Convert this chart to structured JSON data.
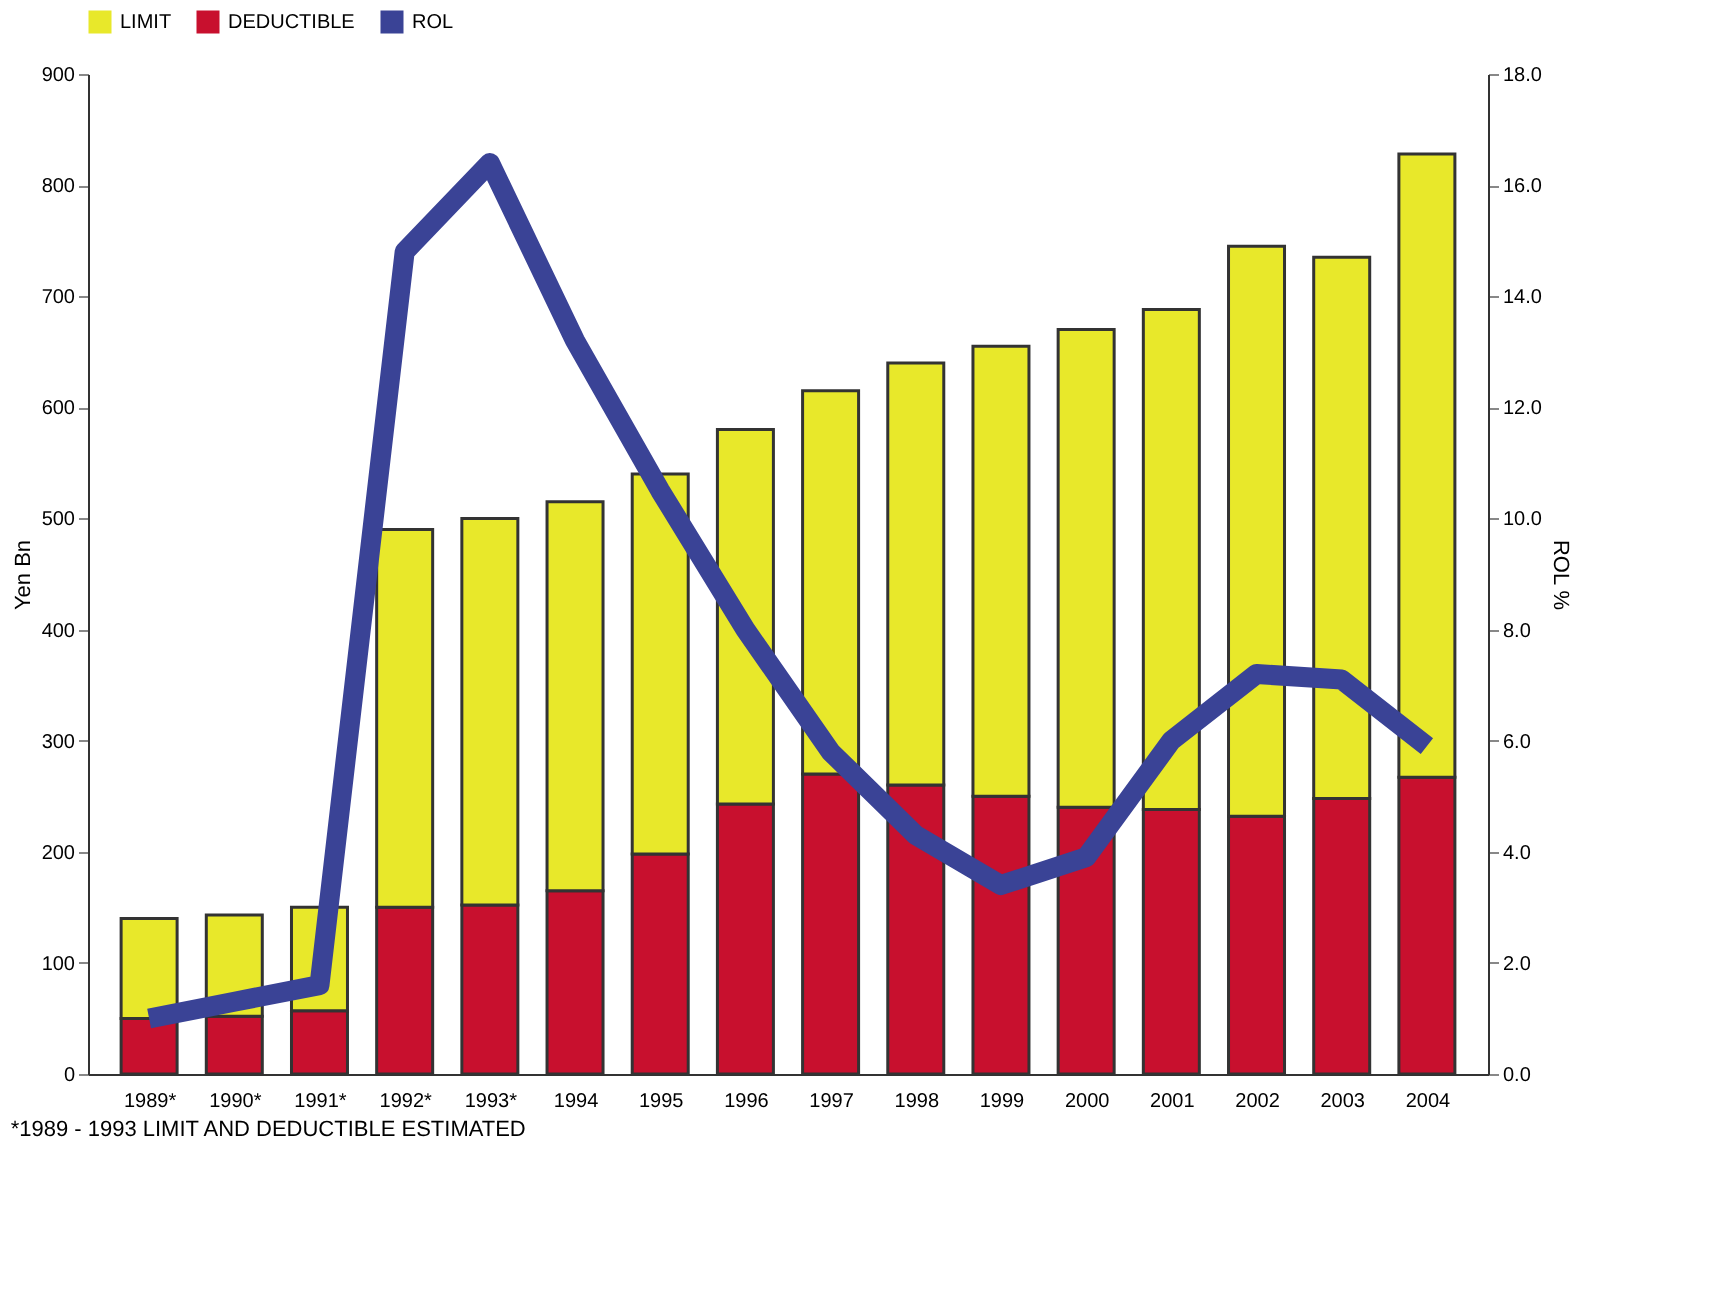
{
  "chart_data": {
    "type": "bar",
    "stacked": true,
    "categories": [
      "1989*",
      "1990*",
      "1991*",
      "1992*",
      "1993*",
      "1994",
      "1995",
      "1996",
      "1997",
      "1998",
      "1999",
      "2000",
      "2001",
      "2002",
      "2003",
      "2004"
    ],
    "series": [
      {
        "name": "DEDUCTIBLE",
        "color": "#c8102e",
        "values": [
          50,
          52,
          57,
          150,
          152,
          165,
          198,
          243,
          270,
          260,
          250,
          240,
          238,
          232,
          248,
          267
        ]
      },
      {
        "name": "LIMIT",
        "color": "#e8e82a",
        "values": [
          90,
          91,
          93,
          340,
          348,
          350,
          342,
          337,
          345,
          380,
          405,
          430,
          450,
          513,
          487,
          561
        ]
      },
      {
        "name": "ROL",
        "color": "#3a4396",
        "type": "line",
        "axis": "y2",
        "values": [
          1.0,
          1.3,
          1.6,
          14.8,
          16.4,
          13.2,
          10.5,
          8.0,
          5.8,
          4.3,
          3.4,
          3.9,
          6.0,
          7.2,
          7.1,
          5.9
        ]
      }
    ],
    "ylabel": "Yen Bn",
    "y2label": "ROL %",
    "ylim": [
      0,
      900
    ],
    "yticks": [
      0,
      100,
      200,
      300,
      400,
      500,
      600,
      700,
      800,
      900
    ],
    "y2lim": [
      0,
      18
    ],
    "y2ticks": [
      {
        "value": 0,
        "label": "0.0"
      },
      {
        "value": 2,
        "label": "2.0"
      },
      {
        "value": 4,
        "label": "4.0"
      },
      {
        "value": 6,
        "label": "6.0"
      },
      {
        "value": 8,
        "label": "8.0"
      },
      {
        "value": 10,
        "label": "10.0"
      },
      {
        "value": 12,
        "label": "12.0"
      },
      {
        "value": 14,
        "label": "14.0"
      },
      {
        "value": 16,
        "label": "16.0"
      },
      {
        "value": 18,
        "label": "18.0"
      }
    ],
    "legend": "top",
    "grid": false,
    "annotations": [
      "*1989 - 1993 LIMIT AND DEDUCTIBLE ESTIMATED"
    ]
  }
}
